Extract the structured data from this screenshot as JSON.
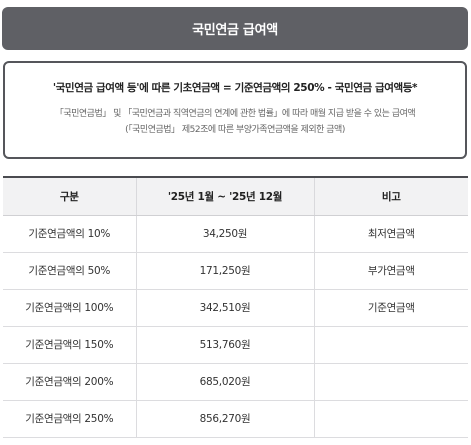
{
  "header": {
    "title": "국민연금 급여액"
  },
  "note": {
    "formula": "'국민연금 급여액 등'에 따른 기초연금액 = 기준연금액의 250% - 국민연금 급여액등*",
    "line1": "「국민연금법」 및 「국민연금과 직역연금의 연계에 관한 법률」에 따라 매월 지급 받을 수 있는 급여액",
    "line2": "(「국민연금법」 제52조에 따른 부양가족연금액을 제외한 금액)"
  },
  "table": {
    "headers": [
      "구분",
      "'25년 1월 ~ '25년 12월",
      "비고"
    ],
    "rows": [
      {
        "category": "기준연금액의 10%",
        "amount": "34,250원",
        "remark": "최저연금액"
      },
      {
        "category": "기준연금액의 50%",
        "amount": "171,250원",
        "remark": "부가연금액"
      },
      {
        "category": "기준연금액의 100%",
        "amount": "342,510원",
        "remark": "기준연금액"
      },
      {
        "category": "기준연금액의 150%",
        "amount": "513,760원",
        "remark": ""
      },
      {
        "category": "기준연금액의 200%",
        "amount": "685,020원",
        "remark": ""
      },
      {
        "category": "기준연금액의 250%",
        "amount": "856,270원",
        "remark": ""
      }
    ]
  }
}
